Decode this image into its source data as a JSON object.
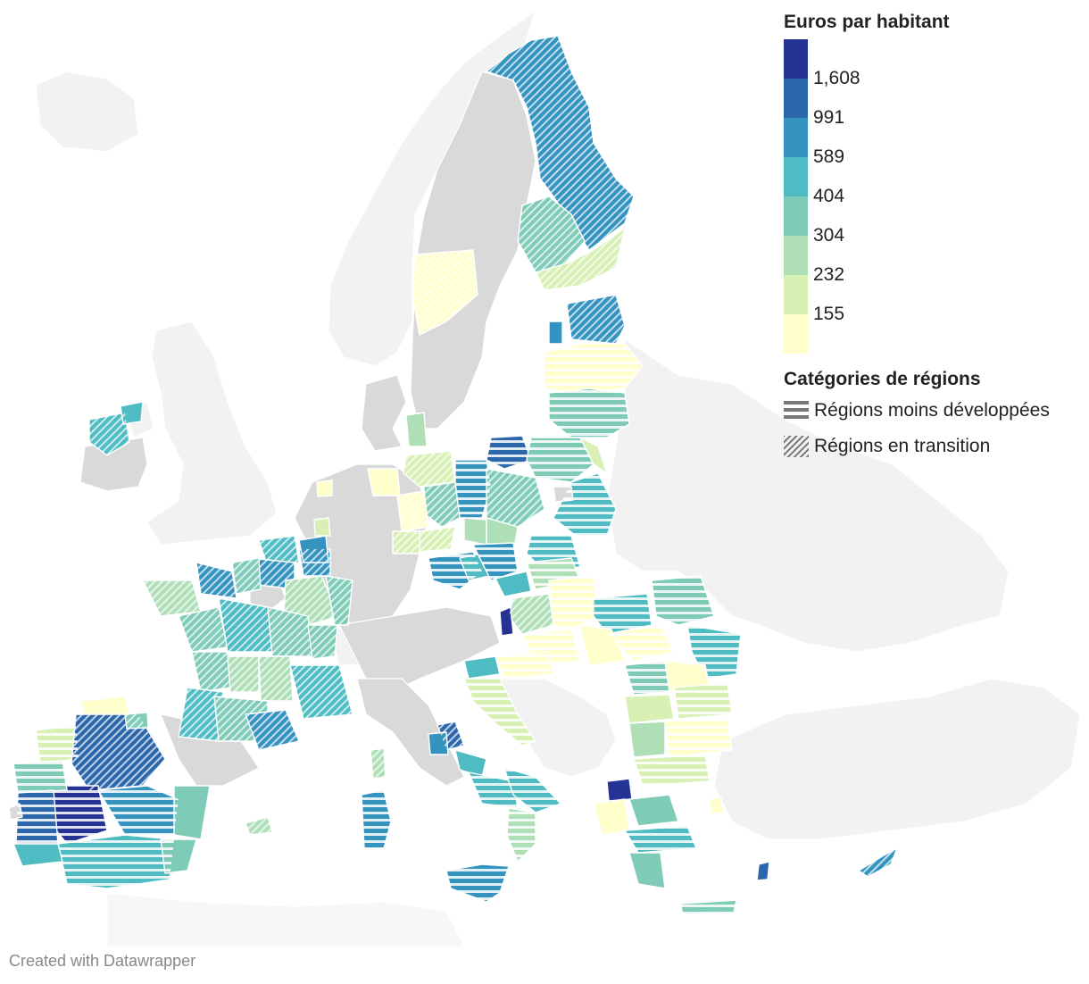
{
  "legend": {
    "title": "Euros par habitant",
    "colors": [
      "#253494",
      "#2c67ab",
      "#3593c0",
      "#4fbcc4",
      "#7ecbb8",
      "#aedfb6",
      "#d9f0b4",
      "#ffffcc"
    ],
    "ticks": [
      "1,608",
      "991",
      "589",
      "404",
      "304",
      "232",
      "155"
    ]
  },
  "categories": {
    "title": "Catégories de régions",
    "items": [
      {
        "label": "Régions moins développées",
        "pattern": "horizontal-stripes-icon"
      },
      {
        "label": "Régions en transition",
        "pattern": "diagonal-hatch-icon"
      }
    ]
  },
  "credit": "Created with Datawrapper",
  "map_colors": {
    "non_eu_land": "#f2f2f2",
    "non_eligible_region": "#d9d9d9",
    "border": "#ffffff"
  }
}
